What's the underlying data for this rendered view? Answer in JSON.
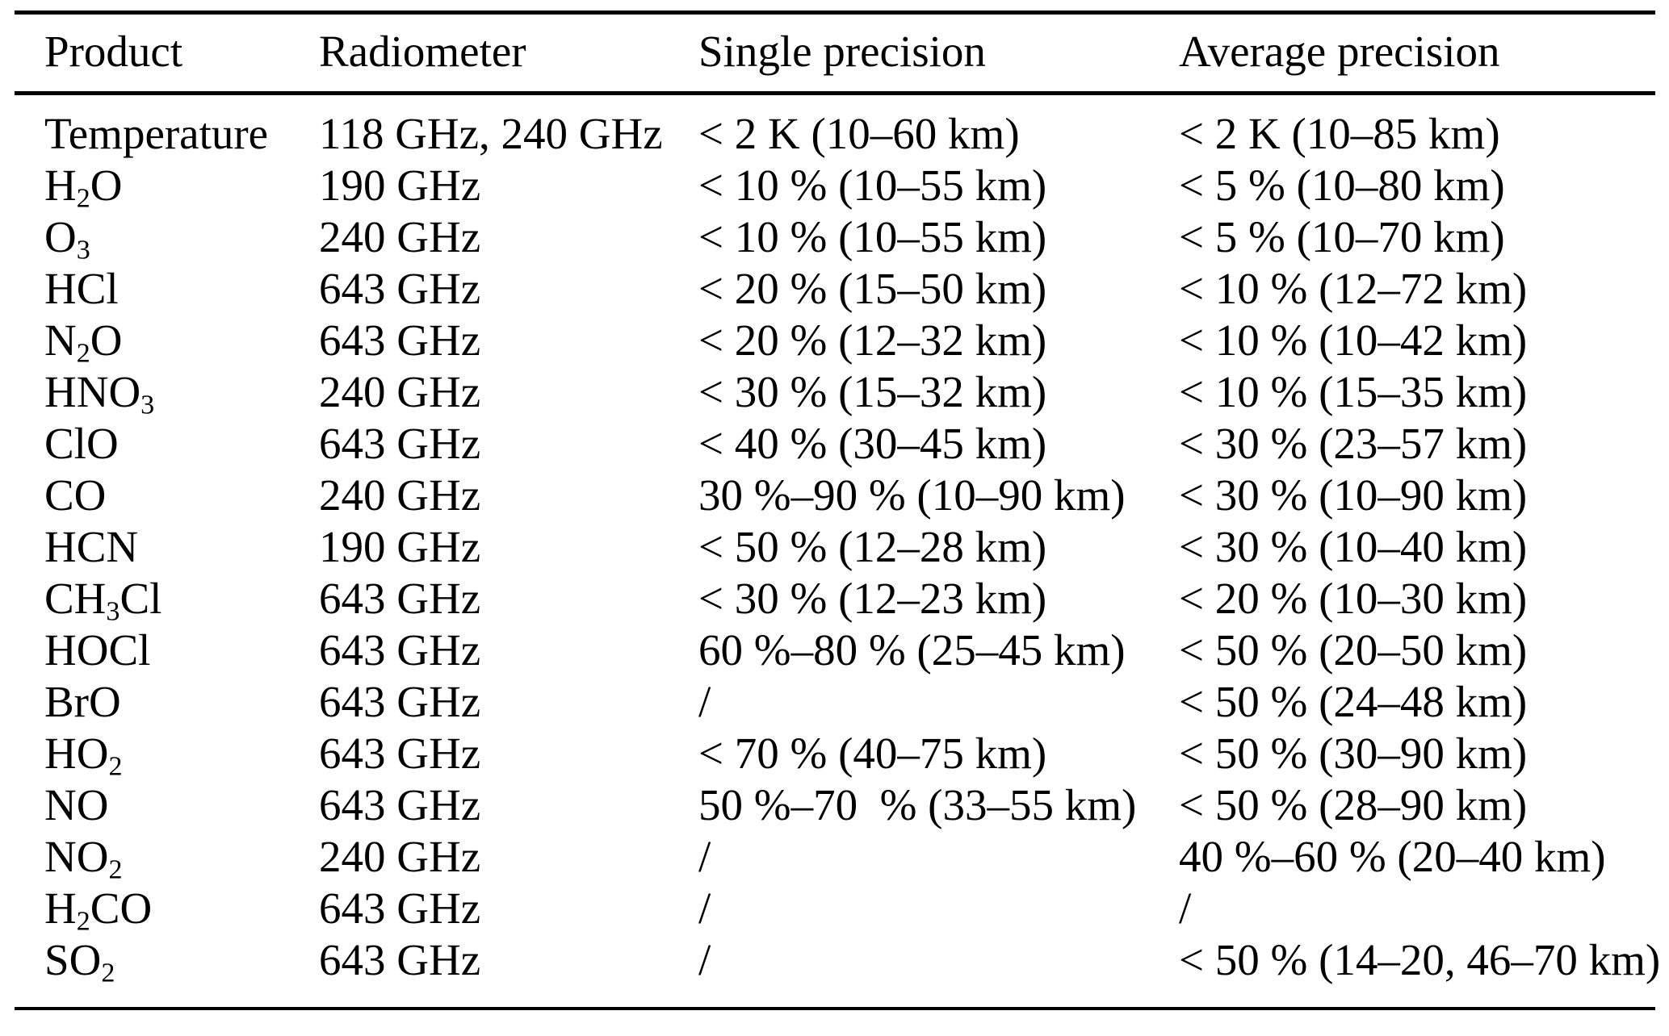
{
  "colors": {
    "text": "#000000",
    "background": "#ffffff",
    "rule": "#000000"
  },
  "table": {
    "columns": [
      "Product",
      "Radiometer",
      "Single precision",
      "Average precision"
    ],
    "rows": [
      {
        "product": "Temperature",
        "radiometer": "118 GHz, 240 GHz",
        "single": "< 2 K (10–60 km)",
        "average": "< 2 K (10–85 km)"
      },
      {
        "product": "H_2O",
        "radiometer": "190 GHz",
        "single": "< 10 % (10–55 km)",
        "average": "< 5 % (10–80 km)"
      },
      {
        "product": "O_3",
        "radiometer": "240 GHz",
        "single": "< 10 % (10–55 km)",
        "average": "< 5 % (10–70 km)"
      },
      {
        "product": "HCl",
        "radiometer": "643 GHz",
        "single": "< 20 % (15–50 km)",
        "average": "< 10 % (12–72 km)"
      },
      {
        "product": "N_2O",
        "radiometer": "643 GHz",
        "single": "< 20 % (12–32 km)",
        "average": "< 10 % (10–42 km)"
      },
      {
        "product": "HNO_3",
        "radiometer": "240 GHz",
        "single": "< 30 % (15–32 km)",
        "average": "< 10 % (15–35 km)"
      },
      {
        "product": "ClO",
        "radiometer": "643 GHz",
        "single": "< 40 % (30–45 km)",
        "average": "< 30 % (23–57 km)"
      },
      {
        "product": "CO",
        "radiometer": "240 GHz",
        "single": "30 %–90 % (10–90 km)",
        "average": "< 30 % (10–90 km)"
      },
      {
        "product": "HCN",
        "radiometer": "190 GHz",
        "single": "< 50 % (12–28 km)",
        "average": "< 30 % (10–40 km)"
      },
      {
        "product": "CH_3Cl",
        "radiometer": "643 GHz",
        "single": "< 30 % (12–23 km)",
        "average": "< 20 % (10–30 km)"
      },
      {
        "product": "HOCl",
        "radiometer": "643 GHz",
        "single": "60 %–80 % (25–45 km)",
        "average": "< 50 % (20–50 km)"
      },
      {
        "product": "BrO",
        "radiometer": "643 GHz",
        "single": "/",
        "average": "< 50 % (24–48 km)"
      },
      {
        "product": "HO_2",
        "radiometer": "643 GHz",
        "single": "< 70 % (40–75 km)",
        "average": "< 50 % (30–90 km)"
      },
      {
        "product": "NO",
        "radiometer": "643 GHz",
        "single": "50 %–70  % (33–55 km)",
        "average": "< 50 % (28–90 km)"
      },
      {
        "product": "NO_2",
        "radiometer": "240 GHz",
        "single": "/",
        "average": "40 %–60 % (20–40 km)"
      },
      {
        "product": "H_2CO",
        "radiometer": "643 GHz",
        "single": "/",
        "average": "/"
      },
      {
        "product": "SO_2",
        "radiometer": "643 GHz",
        "single": "/",
        "average": "< 50 % (14–20, 46–70 km)"
      }
    ]
  }
}
